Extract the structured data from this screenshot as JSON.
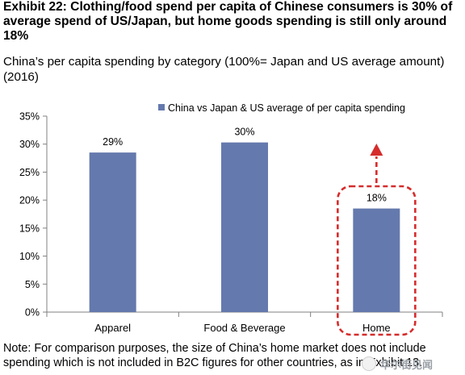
{
  "header": {
    "title": "Exhibit 22: Clothing/food spend per capita of Chinese consumers is 30% of average spend of US/Japan, but home goods spending is still only around 18%",
    "subtitle": "China’s per capita spending by category (100%= Japan and US average amount) (2016)"
  },
  "footer": {
    "note": "Note: For comparison purposes, the size of China’s home market does not include spending which is not included in B2C figures for other countries, as in Exhibit 13."
  },
  "watermark": {
    "text": "华尔街见闻"
  },
  "chart_data": {
    "type": "bar",
    "categories": [
      "Apparel",
      "Food & Beverage",
      "Home"
    ],
    "series": [
      {
        "name": "China vs Japan & US average of per capita spending",
        "values": [
          0.285,
          0.303,
          0.185
        ],
        "labels": [
          "29%",
          "30%",
          "18%"
        ],
        "color": "#6479ad"
      }
    ],
    "ylim": [
      0,
      0.35
    ],
    "yticks": [
      0,
      0.05,
      0.1,
      0.15,
      0.2,
      0.25,
      0.3,
      0.35
    ],
    "ytick_labels": [
      "0%",
      "5%",
      "10%",
      "15%",
      "20%",
      "25%",
      "30%",
      "35%"
    ],
    "legend_position": "top",
    "grid": false,
    "annotation": {
      "category": "Home",
      "shape": "dashed rounded rectangle with upward dashed arrow",
      "color": "#d62c2c"
    }
  }
}
